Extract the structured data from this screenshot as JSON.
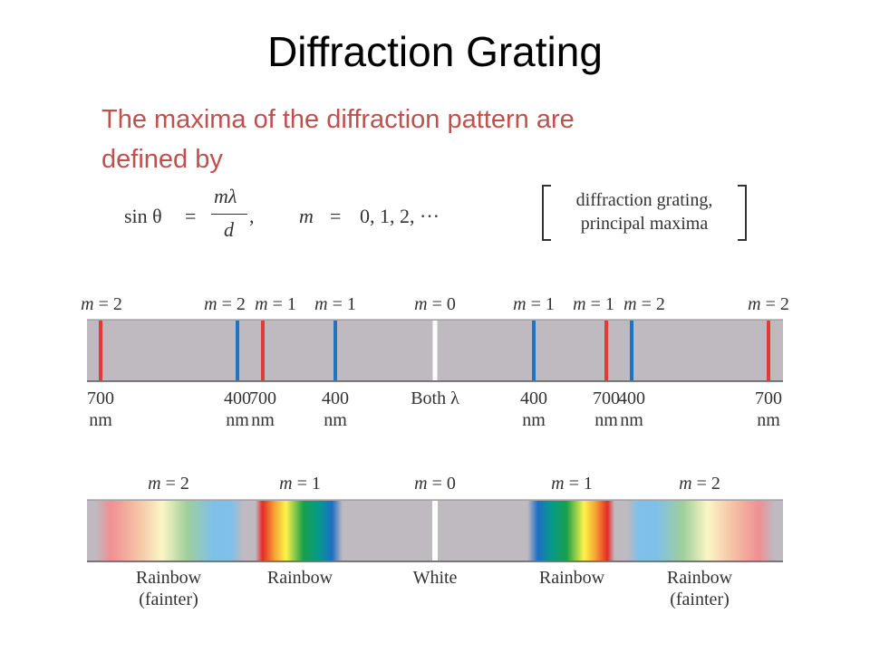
{
  "title": "Diffraction Grating",
  "intro_line1": "The maxima of the diffraction pattern are",
  "intro_line2": "defined by",
  "formula": {
    "lhs": "sin θ",
    "equals": "=",
    "numerator": "mλ",
    "denominator": "d",
    "comma": ",",
    "m": "m",
    "equals2": "=",
    "m_values": "0, 1, 2, ···",
    "bracket_line1": "diffraction grating,",
    "bracket_line2": "principal maxima"
  },
  "colors": {
    "title": "#000000",
    "intro": "#c0504d",
    "band": "#bfb9c0",
    "red_line": "#e53935",
    "blue_line": "#1f74c2",
    "white_line": "#ffffff"
  },
  "diagram1": {
    "lines": [
      {
        "label": "m = 2",
        "wl": "700",
        "unit": "nm",
        "color": "red"
      },
      {
        "label": "m = 2",
        "wl": "400",
        "unit": "nm",
        "color": "blue"
      },
      {
        "label": "m = 1",
        "wl": "700",
        "unit": "nm",
        "color": "red"
      },
      {
        "label": "m = 1",
        "wl": "400",
        "unit": "nm",
        "color": "blue"
      },
      {
        "label": "m = 0",
        "wl": "Both λ",
        "unit": "",
        "color": "white"
      },
      {
        "label": "m = 1",
        "wl": "400",
        "unit": "nm",
        "color": "blue"
      },
      {
        "label": "m = 1",
        "wl": "700",
        "unit": "nm",
        "color": "red"
      },
      {
        "label": "m = 2",
        "wl": "400",
        "unit": "nm",
        "color": "blue"
      },
      {
        "label": "m = 2",
        "wl": "700",
        "unit": "nm",
        "color": "red"
      }
    ]
  },
  "diagram2": {
    "orders": [
      {
        "label": "m = 2",
        "caption1": "Rainbow",
        "caption2": "(fainter)"
      },
      {
        "label": "m = 1",
        "caption1": "Rainbow",
        "caption2": ""
      },
      {
        "label": "m = 0",
        "caption1": "White",
        "caption2": ""
      },
      {
        "label": "m = 1",
        "caption1": "Rainbow",
        "caption2": ""
      },
      {
        "label": "m = 2",
        "caption1": "Rainbow",
        "caption2": "(fainter)"
      }
    ]
  }
}
